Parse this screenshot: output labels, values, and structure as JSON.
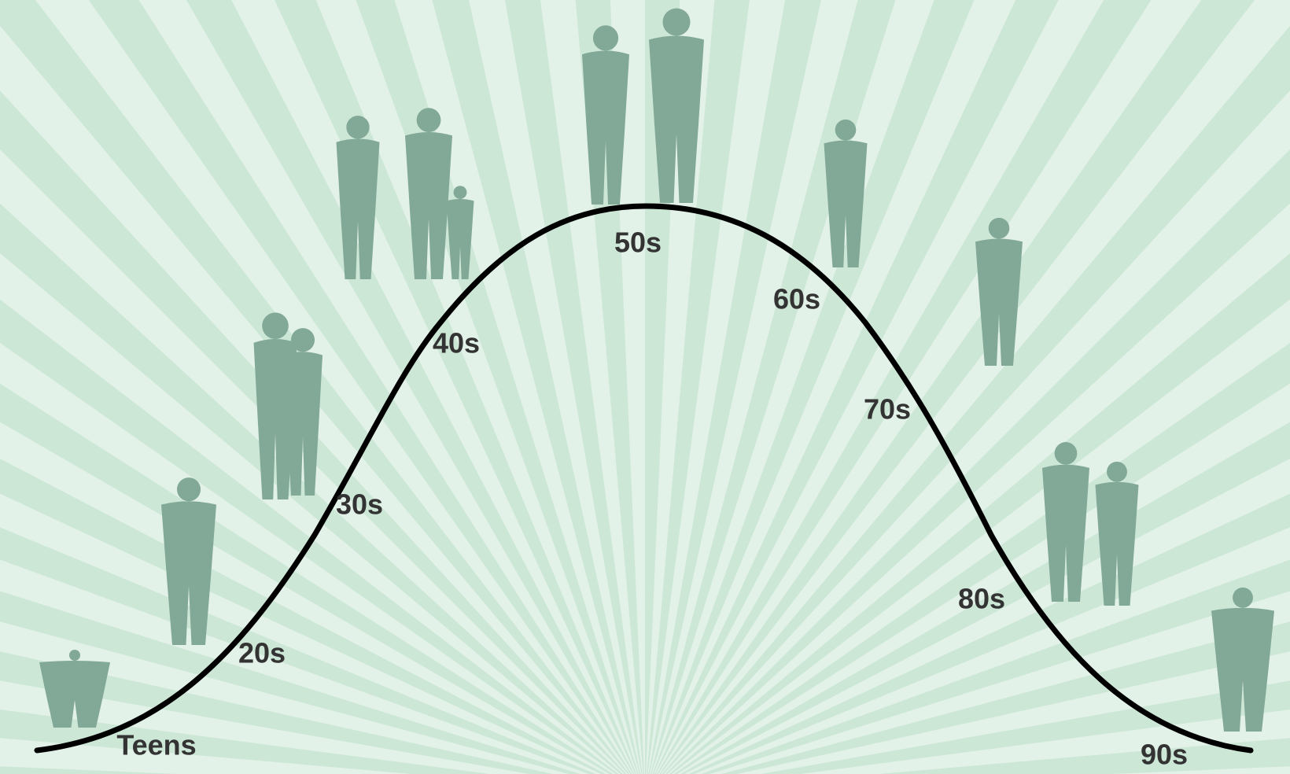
{
  "labels": [
    "Teens",
    "20s",
    "30s",
    "40s",
    "50s",
    "60s",
    "70s",
    "80s",
    "90s"
  ]
}
